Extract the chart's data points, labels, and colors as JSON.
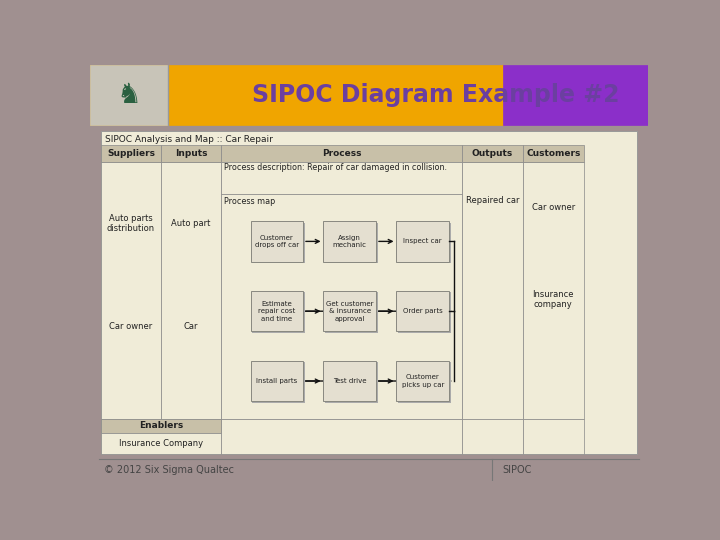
{
  "title": "SIPOC Diagram Example #2",
  "title_color": "#6B3FA0",
  "header_bg_gold": "#F0A500",
  "header_bg_purple": "#8B2FC9",
  "slide_bg": "#A09090",
  "table_bg": "#F0ECD8",
  "col_header_bg": "#C8C0A8",
  "table_title": "SIPOC Analysis and Map :: Car Repair",
  "col_headers": [
    "Suppliers",
    "Inputs",
    "Process",
    "Outputs",
    "Customers"
  ],
  "suppliers": [
    "Auto parts\ndistribution",
    "Car owner"
  ],
  "inputs": [
    "Auto part",
    "Car"
  ],
  "process_desc": "Process description: Repair of car damaged in collision.",
  "outputs": [
    "Repaired car"
  ],
  "customers": [
    "Car owner",
    "Insurance\ncompany"
  ],
  "enablers_label": "Enablers",
  "enablers_content": "Insurance Company",
  "process_map_label": "Process map",
  "boxes": [
    {
      "label": "Customer\ndrops off car",
      "col": 0,
      "row": 0
    },
    {
      "label": "Assign\nmechanic",
      "col": 1,
      "row": 0
    },
    {
      "label": "Inspect car",
      "col": 2,
      "row": 0
    },
    {
      "label": "Estimate\nrepair cost\nand time",
      "col": 0,
      "row": 1
    },
    {
      "label": "Get customer\n& insurance\napproval",
      "col": 1,
      "row": 1
    },
    {
      "label": "Order parts",
      "col": 2,
      "row": 1
    },
    {
      "label": "Install parts",
      "col": 0,
      "row": 2
    },
    {
      "label": "Test drive",
      "col": 1,
      "row": 2
    },
    {
      "label": "Customer\npicks up car",
      "col": 2,
      "row": 2
    }
  ],
  "footer_left": "© 2012 Six Sigma Qualtec",
  "footer_right": "SIPOC",
  "box_fill": "#E4DFD0",
  "box_shadow": "#AAAAAA",
  "box_edge": "#888880",
  "arrow_color": "#111111"
}
